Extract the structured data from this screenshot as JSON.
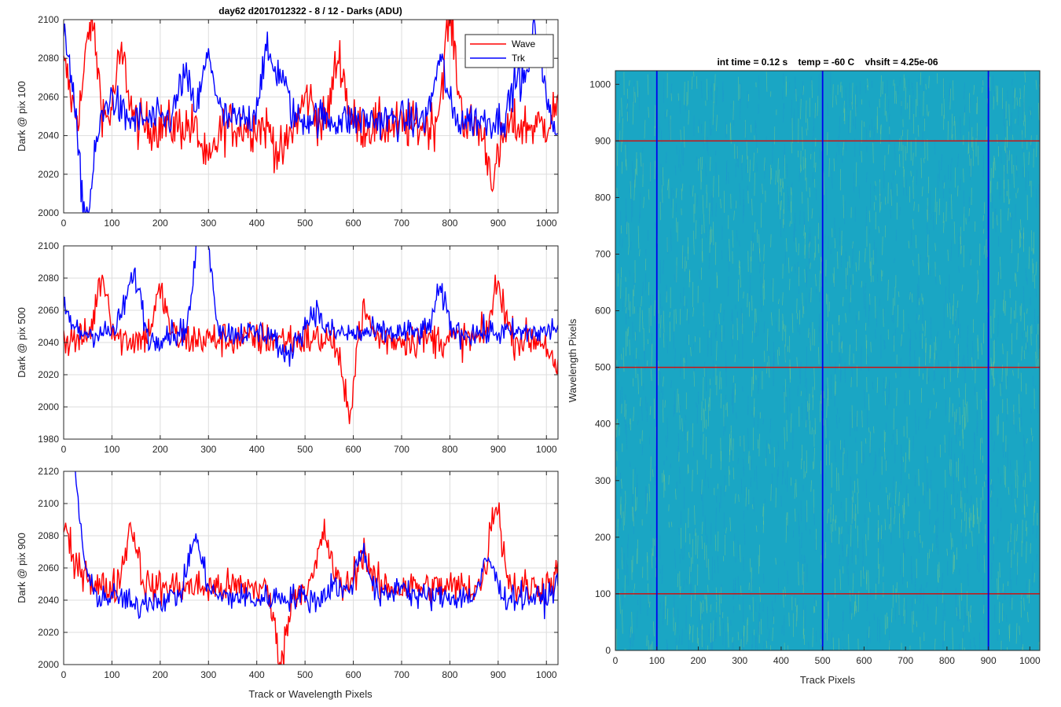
{
  "chart_data": [
    {
      "type": "line",
      "title": "day62 d2017012322 - 8 / 12 - Darks (ADU)",
      "xlabel": "",
      "ylabel": "Dark @ pix 100",
      "xlim": [
        0,
        1024
      ],
      "ylim": [
        2000,
        2100
      ],
      "xticks": [
        0,
        100,
        200,
        300,
        400,
        500,
        600,
        700,
        800,
        900,
        1000
      ],
      "yticks": [
        2000,
        2020,
        2040,
        2060,
        2080,
        2100
      ],
      "grid": true,
      "legend": {
        "position": "top-right",
        "entries": [
          "Wave",
          "Trk"
        ]
      },
      "series": [
        {
          "name": "Wave",
          "color": "#ff0000",
          "baseline": 2045,
          "noise": 9,
          "keypoints": [
            [
              0,
              2075
            ],
            [
              57,
              2098
            ],
            [
              120,
              2080
            ],
            [
              300,
              2025
            ],
            [
              450,
              2030
            ],
            [
              505,
              2060
            ],
            [
              570,
              2080
            ],
            [
              800,
              2098
            ],
            [
              890,
              2020
            ],
            [
              1024,
              2055
            ]
          ]
        },
        {
          "name": "Trk",
          "color": "#0000ff",
          "baseline": 2048,
          "noise": 7,
          "keypoints": [
            [
              0,
              2075
            ],
            [
              10,
              2065
            ],
            [
              40,
              2030
            ],
            [
              50,
              2015
            ],
            [
              100,
              2060
            ],
            [
              250,
              2070
            ],
            [
              300,
              2080
            ],
            [
              420,
              2080
            ],
            [
              450,
              2070
            ],
            [
              520,
              2050
            ],
            [
              780,
              2078
            ],
            [
              940,
              2070
            ],
            [
              978,
              2095
            ],
            [
              1024,
              2045
            ]
          ]
        }
      ]
    },
    {
      "type": "line",
      "title": "",
      "xlabel": "",
      "ylabel": "Dark @ pix 500",
      "xlim": [
        0,
        1024
      ],
      "ylim": [
        1980,
        2100
      ],
      "xticks": [
        0,
        100,
        200,
        300,
        400,
        500,
        600,
        700,
        800,
        900,
        1000
      ],
      "yticks": [
        1980,
        2000,
        2020,
        2040,
        2060,
        2080,
        2100
      ],
      "grid": true,
      "series": [
        {
          "name": "Wave",
          "color": "#ff0000",
          "baseline": 2042,
          "noise": 8,
          "keypoints": [
            [
              80,
              2080
            ],
            [
              200,
              2070
            ],
            [
              590,
              1998
            ],
            [
              620,
              2060
            ],
            [
              900,
              2075
            ],
            [
              1024,
              2020
            ]
          ]
        },
        {
          "name": "Trk",
          "color": "#0000ff",
          "baseline": 2046,
          "noise": 6,
          "keypoints": [
            [
              0,
              2060
            ],
            [
              130,
              2060
            ],
            [
              150,
              2075
            ],
            [
              180,
              2040
            ],
            [
              280,
              2078
            ],
            [
              290,
              2095
            ],
            [
              300,
              2060
            ],
            [
              460,
              2030
            ],
            [
              520,
              2060
            ],
            [
              600,
              2045
            ],
            [
              780,
              2070
            ],
            [
              1024,
              2050
            ]
          ]
        }
      ]
    },
    {
      "type": "line",
      "title": "",
      "xlabel": "Track or Wavelength Pixels",
      "ylabel": "Dark @ pix 900",
      "xlim": [
        0,
        1024
      ],
      "ylim": [
        2000,
        2120
      ],
      "xticks": [
        0,
        100,
        200,
        300,
        400,
        500,
        600,
        700,
        800,
        900,
        1000
      ],
      "yticks": [
        2000,
        2020,
        2040,
        2060,
        2080,
        2100,
        2120
      ],
      "grid": true,
      "series": [
        {
          "name": "Wave",
          "color": "#ff0000",
          "baseline": 2048,
          "noise": 8,
          "keypoints": [
            [
              0,
              2085
            ],
            [
              40,
              2060
            ],
            [
              140,
              2085
            ],
            [
              450,
              2005
            ],
            [
              540,
              2080
            ],
            [
              620,
              2070
            ],
            [
              895,
              2100
            ],
            [
              1024,
              2055
            ]
          ]
        },
        {
          "name": "Trk",
          "color": "#0000ff",
          "baseline": 2042,
          "noise": 6,
          "keypoints": [
            [
              0,
              2100
            ],
            [
              15,
              2095
            ],
            [
              30,
              2070
            ],
            [
              50,
              2045
            ],
            [
              150,
              2035
            ],
            [
              200,
              2040
            ],
            [
              270,
              2075
            ],
            [
              290,
              2050
            ],
            [
              400,
              2040
            ],
            [
              520,
              2040
            ],
            [
              560,
              2050
            ],
            [
              600,
              2045
            ],
            [
              620,
              2070
            ],
            [
              700,
              2050
            ],
            [
              880,
              2065
            ],
            [
              1000,
              2040
            ],
            [
              1024,
              2050
            ]
          ]
        }
      ]
    },
    {
      "type": "heatmap",
      "title": "int time = 0.12 s    temp = -60 C    vhsift = 4.25e-06",
      "xlabel": "Track Pixels",
      "ylabel": "Wavelength Pixels",
      "xlim": [
        0,
        1024
      ],
      "ylim": [
        0,
        1024
      ],
      "xticks": [
        0,
        100,
        200,
        300,
        400,
        500,
        600,
        700,
        800,
        900,
        1000
      ],
      "yticks": [
        0,
        100,
        200,
        300,
        400,
        500,
        600,
        700,
        800,
        900,
        1000
      ],
      "colormap": {
        "base": "#1aa6c4",
        "low": "#1f8fd0",
        "high": "#8ed27a"
      },
      "hlines": {
        "values": [
          100,
          500,
          900
        ],
        "color": "#cc1111"
      },
      "vlines": {
        "values": [
          100,
          500,
          900
        ],
        "color": "#0000ee"
      }
    }
  ]
}
